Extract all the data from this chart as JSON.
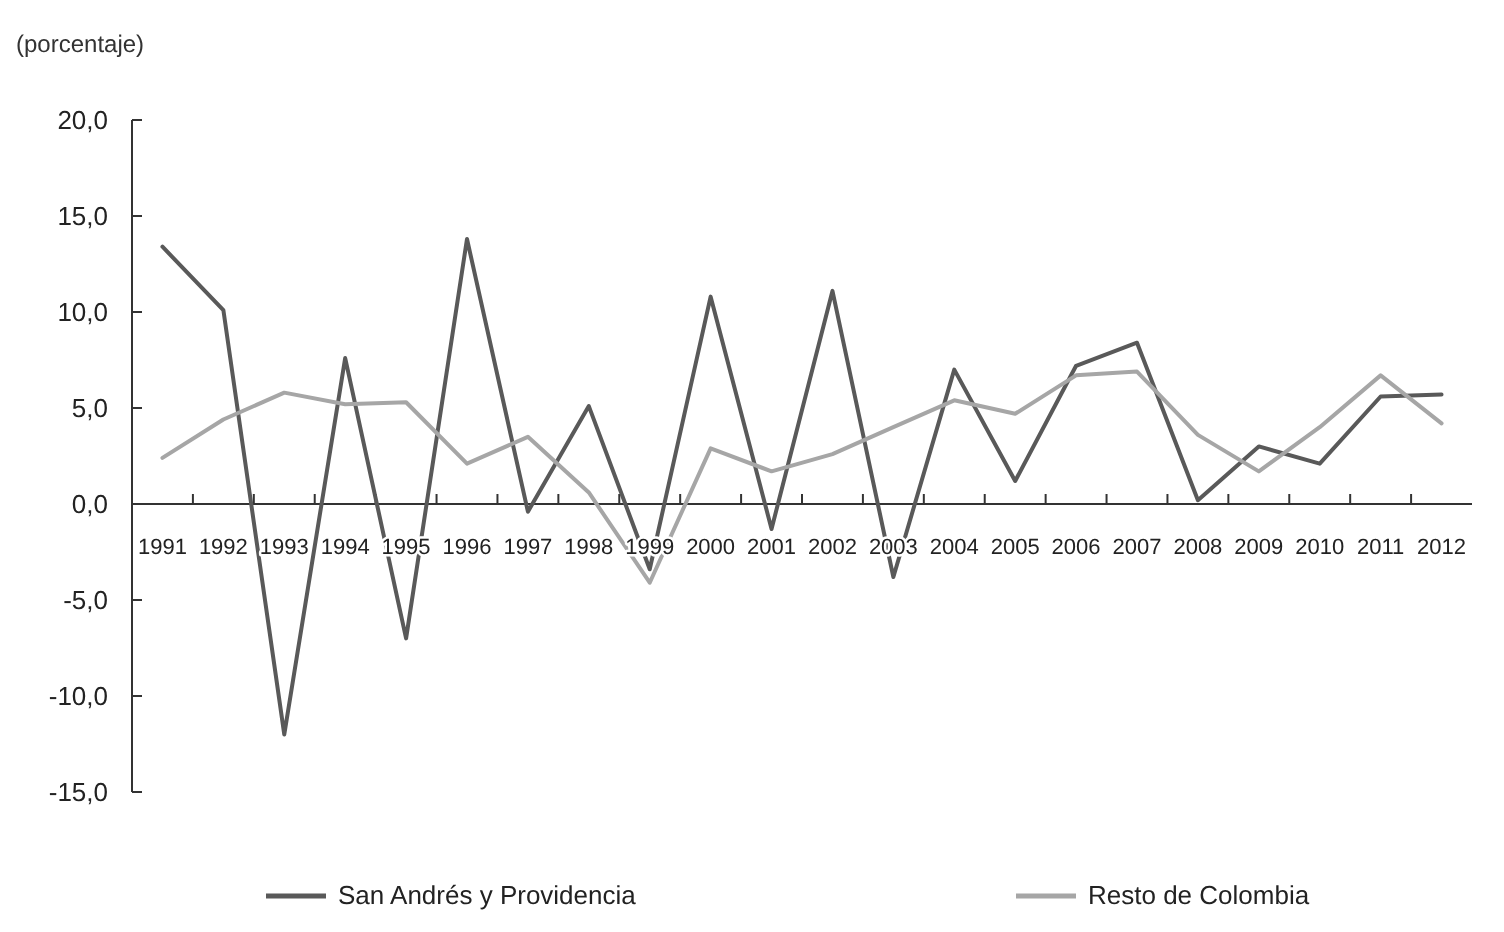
{
  "chart_data": {
    "type": "line",
    "ylabel": "(porcentaje)",
    "categories": [
      "1991",
      "1992",
      "1993",
      "1994",
      "1995",
      "1996",
      "1997",
      "1998",
      "1999",
      "2000",
      "2001",
      "2002",
      "2003",
      "2004",
      "2005",
      "2006",
      "2007",
      "2008",
      "2009",
      "2010",
      "2011",
      "2012"
    ],
    "series": [
      {
        "name": "San Andrés y Providencia",
        "color": "#595959",
        "values": [
          13.4,
          10.1,
          -12.0,
          7.6,
          -7.0,
          13.8,
          -0.4,
          5.1,
          -3.4,
          10.8,
          -1.3,
          11.1,
          -3.8,
          7.0,
          1.2,
          7.2,
          8.4,
          0.2,
          3.0,
          2.1,
          5.6,
          5.7
        ]
      },
      {
        "name": "Resto de Colombia",
        "color": "#a6a6a6",
        "values": [
          2.4,
          4.4,
          5.8,
          5.2,
          5.3,
          2.1,
          3.5,
          0.6,
          -4.1,
          2.9,
          1.7,
          2.6,
          4.0,
          5.4,
          4.7,
          6.7,
          6.9,
          3.6,
          1.7,
          4.0,
          6.7,
          4.2
        ]
      }
    ],
    "ylim": [
      -15,
      20
    ],
    "yticks": [
      {
        "value": -15,
        "label": "-15,0"
      },
      {
        "value": -10,
        "label": "-10,0"
      },
      {
        "value": -5,
        "label": "-5,0"
      },
      {
        "value": 0,
        "label": "0,0"
      },
      {
        "value": 5,
        "label": "5,0"
      },
      {
        "value": 10,
        "label": "10,0"
      },
      {
        "value": 15,
        "label": "15,0"
      },
      {
        "value": 20,
        "label": "20,0"
      }
    ],
    "grid": false,
    "legend": "bottom",
    "marker": "none",
    "line_style": "solid"
  }
}
